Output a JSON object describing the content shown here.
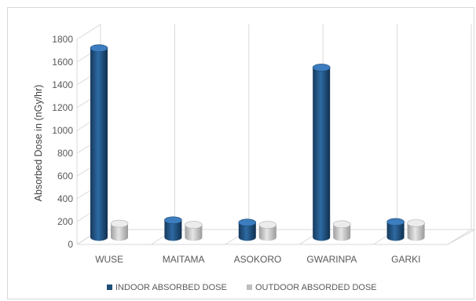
{
  "chart_data": {
    "type": "bar",
    "style": "3d-cylinder",
    "categories": [
      "WUSE",
      "MAITAMA",
      "ASOKORO",
      "GWARINPA",
      "GARKI"
    ],
    "series": [
      {
        "name": "INDOOR ABSORBED DOSE",
        "color": "#1f4e79",
        "values": [
          1660,
          150,
          130,
          1490,
          135
        ]
      },
      {
        "name": "OUTDOOR ABSORDED DOSE",
        "color": "#bfbfbf",
        "values": [
          120,
          110,
          110,
          115,
          125
        ]
      }
    ],
    "ylabel": "Absorbed Dose in (nGy/hr)",
    "xlabel": "",
    "title": "",
    "ylim": [
      0,
      1800
    ],
    "yticks": [
      0,
      200,
      400,
      600,
      800,
      1000,
      1200,
      1400,
      1600,
      1800
    ],
    "grid": true,
    "legend_position": "bottom"
  }
}
